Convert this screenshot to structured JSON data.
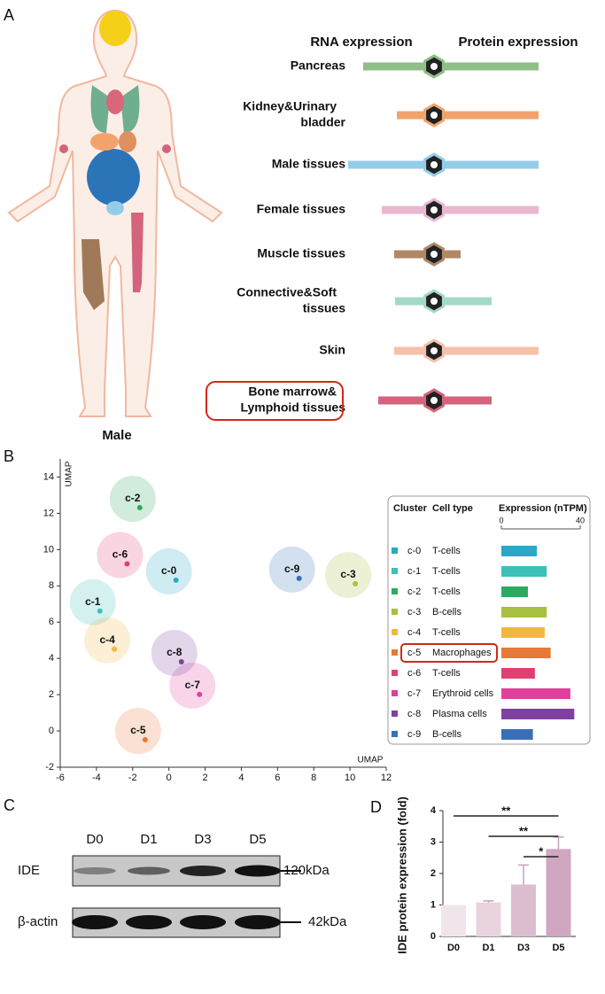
{
  "chart_data": [
    {
      "type": "diverging_bar",
      "panel": "A",
      "figure_label": "Male",
      "left_label": "RNA expression",
      "right_label": "Protein expression",
      "categories": [
        [
          "Pancreas"
        ],
        [
          "Kidney&Urinary",
          "bladder"
        ],
        [
          "Male tissues"
        ],
        [
          "Female tissues"
        ],
        [
          "Muscle tissues"
        ],
        [
          "Connective&Soft",
          "tissues"
        ],
        [
          "Skin"
        ],
        [
          "Bone marrow&",
          "Lymphoid tissues"
        ]
      ],
      "series": [
        {
          "name": "RNA expression",
          "values": [
            80,
            42,
            97,
            59,
            45,
            44,
            45,
            63
          ]
        },
        {
          "name": "Protein expression",
          "values": [
            118,
            118,
            118,
            118,
            30,
            65,
            118,
            65
          ]
        }
      ],
      "colors": [
        "#8fbf86",
        "#f2a36c",
        "#93cdea",
        "#eab7d0",
        "#b08866",
        "#a3d9c9",
        "#f5c1a9",
        "#d4637c"
      ],
      "highlight": 7
    },
    {
      "type": "scatter",
      "panel": "B",
      "xlabel": "UMAP",
      "ylabel": "UMAP",
      "categories": [
        "c-0",
        "c-1",
        "c-2",
        "c-3",
        "c-4",
        "c-5",
        "c-6",
        "c-7",
        "c-8",
        "c-9"
      ],
      "x": [
        0,
        -4.2,
        -2.0,
        9.9,
        -3.4,
        -1.7,
        -2.7,
        1.3,
        0.3,
        6.8
      ],
      "values": [
        8.8,
        7.1,
        12.8,
        8.6,
        5.0,
        0.0,
        9.7,
        2.5,
        4.3,
        8.9
      ],
      "colors": [
        "#2aa8c8",
        "#3cc0b8",
        "#2eaa60",
        "#a8c040",
        "#f0b840",
        "#e87838",
        "#e04070",
        "#e0409a",
        "#8040a0",
        "#3870b8"
      ],
      "xlim": [
        -6,
        12
      ],
      "xticks": [
        -6,
        -4,
        -2,
        0,
        2,
        4,
        6,
        8,
        10,
        12
      ],
      "ylim": [
        -2,
        15
      ],
      "yticks": [
        -2,
        0,
        2,
        4,
        6,
        8,
        10,
        12,
        14
      ]
    },
    {
      "type": "hbar",
      "headers": [
        "Cluster",
        "Cell type",
        "Expression (nTPM)"
      ],
      "categories": [
        "c-0",
        "c-1",
        "c-2",
        "c-3",
        "c-4",
        "c-5",
        "c-6",
        "c-7",
        "c-8",
        "c-9"
      ],
      "cell_types": [
        "T-cells",
        "T-cells",
        "T-cells",
        "B-cells",
        "T-cells",
        "Macrophages",
        "T-cells",
        "Erythroid cells",
        "Plasma cells",
        "B-cells"
      ],
      "values": [
        18,
        23,
        13.5,
        23,
        22,
        25,
        17,
        35,
        37,
        16
      ],
      "colors": [
        "#2aa8c8",
        "#3cc0b8",
        "#2eaa60",
        "#a8c040",
        "#f0b840",
        "#e87838",
        "#e04070",
        "#e0409a",
        "#8040a0",
        "#3870b8"
      ],
      "xlim": [
        0,
        40
      ],
      "xticks": [
        0,
        40
      ],
      "highlight": 5
    },
    {
      "type": "bar",
      "panel": "D",
      "ylabel": "IDE protein expression (fold)",
      "categories": [
        "D0",
        "D1",
        "D3",
        "D5"
      ],
      "values": [
        1,
        1.08,
        1.65,
        2.78
      ],
      "errors": [
        0,
        0.05,
        0.62,
        0.38
      ],
      "colors": [
        "#f1e5ec",
        "#e8d3df",
        "#dcbdd0",
        "#d0a7c0"
      ],
      "ylim": [
        0,
        4
      ],
      "yticks": [
        0,
        1,
        2,
        3,
        4
      ],
      "significance": [
        {
          "from": "D0",
          "to": "D5",
          "label": "**"
        },
        {
          "from": "D1",
          "to": "D5",
          "label": "**"
        },
        {
          "from": "D3",
          "to": "D5",
          "label": "*"
        }
      ]
    }
  ],
  "blot": {
    "panel": "C",
    "lanes": [
      "D0",
      "D1",
      "D3",
      "D5"
    ],
    "rows": [
      {
        "name": "IDE",
        "size": "120kDa"
      },
      {
        "name": "β-actin",
        "size": "42kDa"
      }
    ]
  }
}
